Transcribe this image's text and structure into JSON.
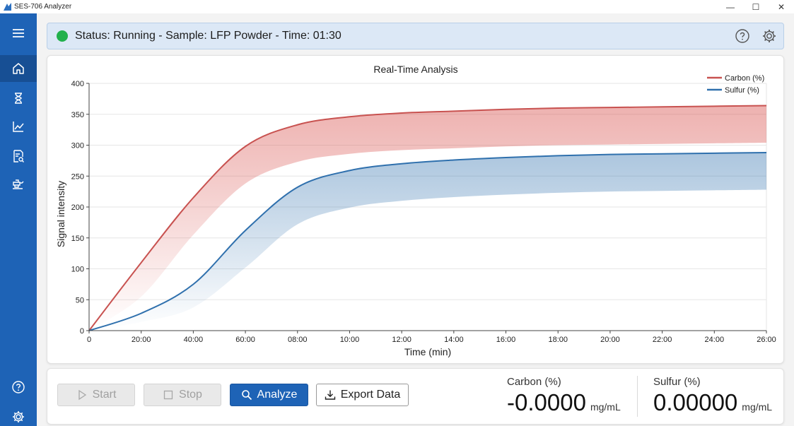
{
  "window": {
    "title": "SES-706 Analyzer",
    "controls": [
      "—",
      "☐",
      "✕"
    ]
  },
  "sidebar": {
    "items": [
      {
        "icon": "menu-icon"
      },
      {
        "icon": "home-icon",
        "active": true
      },
      {
        "icon": "hourglass-icon"
      },
      {
        "icon": "line-chart-icon"
      },
      {
        "icon": "report-search-icon"
      },
      {
        "icon": "instrument-icon"
      },
      {
        "icon": "help-icon"
      },
      {
        "icon": "settings-icon"
      }
    ]
  },
  "status": {
    "text": "Status: Running - Sample: LFP Powder - Time: 01:30",
    "indicator_color": "#22b14c"
  },
  "chart_data": {
    "type": "area",
    "title": "Real-Time Analysis",
    "xlabel": "Time (min)",
    "ylabel": "Signal intensity",
    "x_ticks": [
      "0",
      "20:00",
      "40:00",
      "60:00",
      "08:00",
      "10:00",
      "12:00",
      "14:00",
      "16:00",
      "18:00",
      "20:00",
      "22:00",
      "24:00",
      "26:00"
    ],
    "y_ticks": [
      0,
      50,
      100,
      150,
      200,
      250,
      300,
      350,
      400
    ],
    "ylim": [
      0,
      400
    ],
    "grid": true,
    "legend_position": "top-right",
    "series": [
      {
        "name": "Carbon (%)",
        "color": "#c85250",
        "values": [
          0,
          110,
          215,
          298,
          333,
          346,
          352,
          355,
          358,
          360,
          361,
          362,
          363,
          364
        ]
      },
      {
        "name": "Sulfur (%)",
        "color": "#2f70ad",
        "values": [
          0,
          28,
          75,
          162,
          232,
          259,
          270,
          276,
          280,
          283,
          285,
          286,
          287,
          288
        ]
      }
    ]
  },
  "controls": {
    "start_label": "Start",
    "stop_label": "Stop",
    "analyze_label": "Analyze",
    "export_label": "Export Data"
  },
  "readouts": {
    "carbon": {
      "label": "Carbon (%)",
      "value": "-0.0000",
      "unit": "mg/mL"
    },
    "sulfur": {
      "label": "Sulfur (%)",
      "value": "0.00000",
      "unit": "mg/mL"
    }
  }
}
